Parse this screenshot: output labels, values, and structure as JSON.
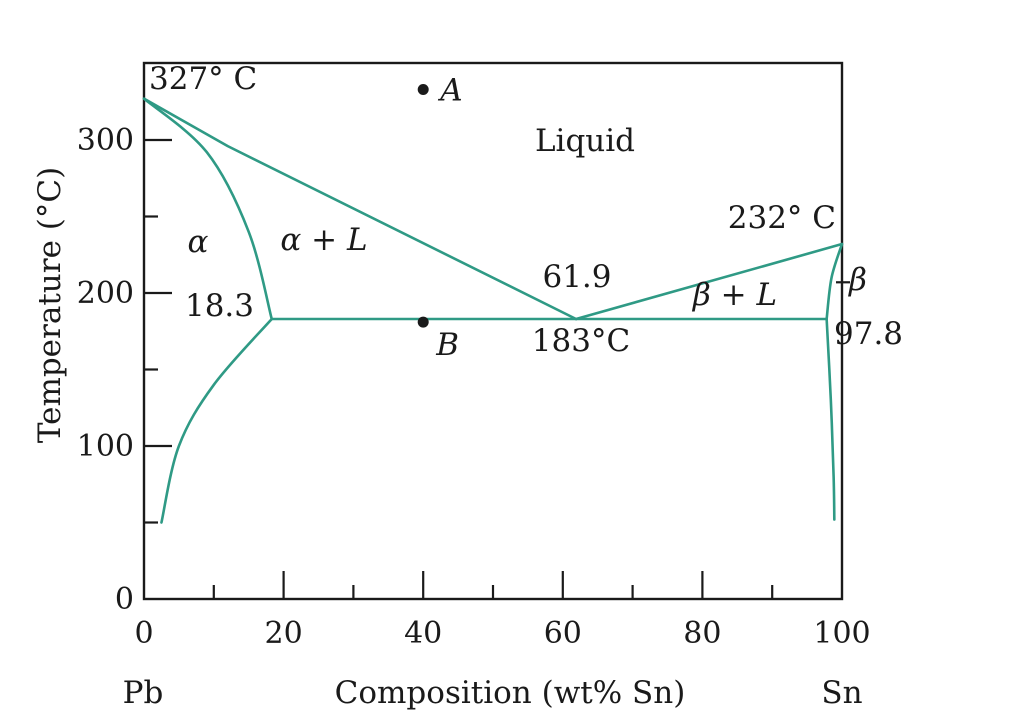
{
  "chart_data": {
    "type": "phase-diagram",
    "xlabel": "Composition (wt% Sn)",
    "ylabel": "Temperature (°C)",
    "xlim": [
      0,
      100
    ],
    "ylim": [
      0,
      350
    ],
    "x_ticks": [
      0,
      20,
      40,
      60,
      80,
      100
    ],
    "y_ticks": [
      0,
      100,
      200,
      300
    ],
    "endpoint_labels": {
      "left": "Pb",
      "right": "Sn"
    },
    "regions": {
      "liquid": "Liquid",
      "alpha": "α",
      "alpha_L": "α + L",
      "beta_L": "β + L",
      "beta": "β"
    },
    "annotations": {
      "pb_melting": "327° C",
      "sn_melting": "232° C",
      "eutectic_composition": "61.9",
      "eutectic_temperature": "183°C",
      "alpha_limit": "18.3",
      "beta_limit": "97.8"
    },
    "points": [
      {
        "label": "A",
        "x": 40,
        "y": 333
      },
      {
        "label": "B",
        "x": 40,
        "y": 181
      }
    ],
    "lines": {
      "liquidus_left": [
        [
          0,
          327
        ],
        [
          12,
          296
        ],
        [
          61.9,
          183
        ]
      ],
      "liquidus_right": [
        [
          61.9,
          183
        ],
        [
          100,
          232
        ]
      ],
      "solidus_left": [
        [
          0,
          327
        ],
        [
          9,
          292
        ],
        [
          15,
          240
        ],
        [
          18.3,
          183
        ]
      ],
      "eutectic_isotherm": [
        [
          18.3,
          183
        ],
        [
          97.8,
          183
        ]
      ],
      "solvus_left": [
        [
          18.3,
          183
        ],
        [
          10,
          140
        ],
        [
          5,
          100
        ],
        [
          2.5,
          50
        ]
      ],
      "solidus_right": [
        [
          97.8,
          183
        ],
        [
          98.5,
          210
        ],
        [
          100,
          232
        ]
      ],
      "solvus_right": [
        [
          97.8,
          183
        ],
        [
          98.4,
          130
        ],
        [
          98.8,
          80
        ],
        [
          98.9,
          52
        ]
      ]
    }
  }
}
